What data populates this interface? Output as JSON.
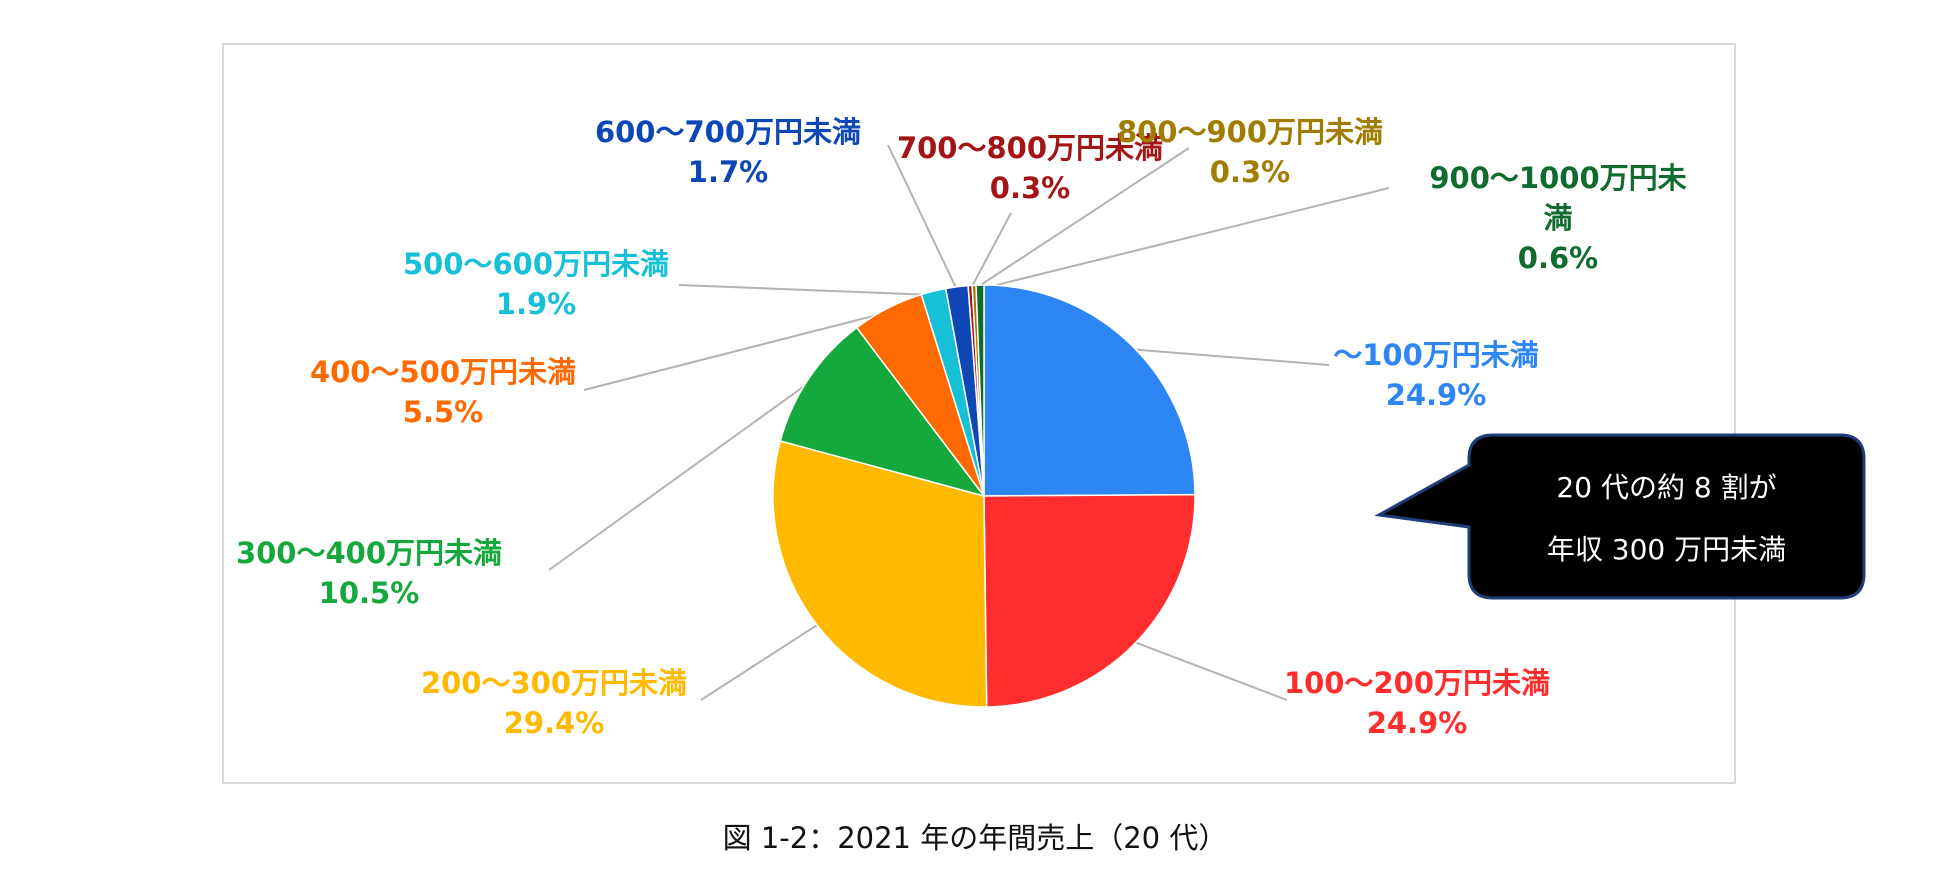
{
  "chart_data": {
    "type": "pie",
    "slices": [
      {
        "label": "～100万円未満",
        "value": 24.9,
        "value_label": "24.9%",
        "color": "#2e86f5",
        "label_lines": [
          "～100万円未満"
        ]
      },
      {
        "label": "100～200万円未満",
        "value": 24.9,
        "value_label": "24.9%",
        "color": "#ff2e2e",
        "label_lines": [
          "100～200万円未満"
        ]
      },
      {
        "label": "200～300万円未満",
        "value": 29.4,
        "value_label": "29.4%",
        "color": "#ffba00",
        "label_lines": [
          "200～300万円未満"
        ]
      },
      {
        "label": "300～400万円未満",
        "value": 10.5,
        "value_label": "10.5%",
        "color": "#15a83c",
        "label_lines": [
          "300～400万円未満"
        ]
      },
      {
        "label": "400～500万円未満",
        "value": 5.5,
        "value_label": "5.5%",
        "color": "#ff6a00",
        "label_lines": [
          "400～500万円未満"
        ]
      },
      {
        "label": "500～600万円未満",
        "value": 1.9,
        "value_label": "1.9%",
        "color": "#16c0d6",
        "label_lines": [
          "500～600万円未満"
        ]
      },
      {
        "label": "600～700万円未満",
        "value": 1.7,
        "value_label": "1.7%",
        "color": "#0d47b5",
        "label_lines": [
          "600～700万円未満"
        ]
      },
      {
        "label": "700～800万円未満",
        "value": 0.3,
        "value_label": "0.3%",
        "color": "#a31515",
        "label_lines": [
          "700～800万円未満"
        ]
      },
      {
        "label": "800～900万円未満",
        "value": 0.3,
        "value_label": "0.3%",
        "color": "#a07c00",
        "label_lines": [
          "800～900万円未満"
        ]
      },
      {
        "label": "900～1000万円未満",
        "value": 0.6,
        "value_label": "0.6%",
        "color": "#0f6b2e",
        "label_lines": [
          "900～1000万円未",
          "満"
        ]
      }
    ],
    "callout": {
      "lines": [
        "20 代の約 8 割が",
        "年収 300 万円未満"
      ]
    }
  },
  "caption": "図 1-2：2021 年の年間売上（20 代）"
}
